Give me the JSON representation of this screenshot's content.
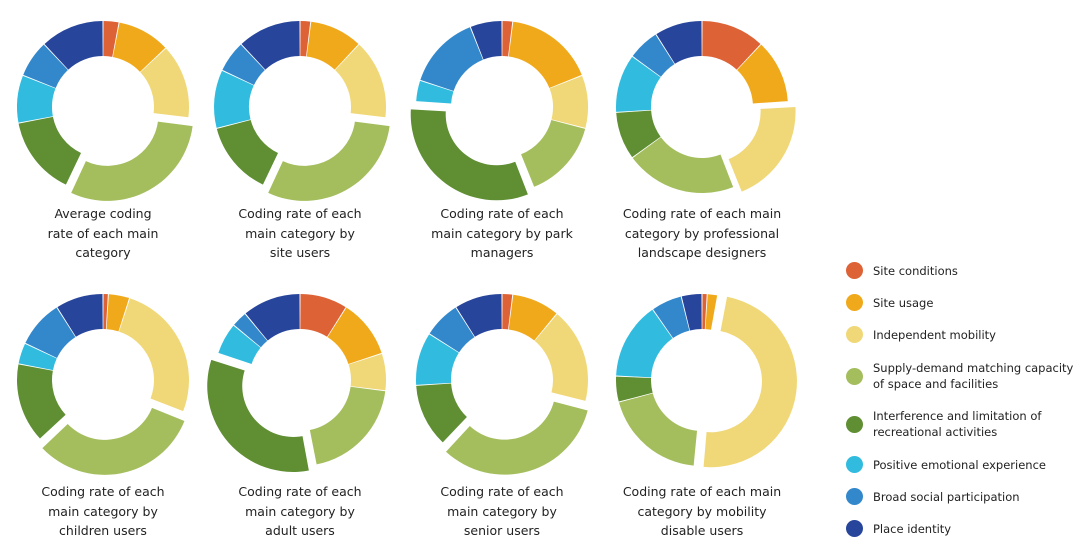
{
  "categories": [
    {
      "name": "Site conditions",
      "color": "#dd6236"
    },
    {
      "name": "Site usage",
      "color": "#f0a91b"
    },
    {
      "name": "Independent mobility",
      "color": "#f0d878"
    },
    {
      "name": "Supply-demand matching capacity of space and facilities",
      "color": "#a4be5e"
    },
    {
      "name": "Interference and limitation of recreational activities",
      "color": "#5f8e33"
    },
    {
      "name": "Positive emotional experience",
      "color": "#31bcdf"
    },
    {
      "name": "Broad social participation",
      "color": "#3388cc"
    },
    {
      "name": "Place identity",
      "color": "#27459b"
    }
  ],
  "chart_data": [
    {
      "type": "pie",
      "title": "Average coding rate of each main category",
      "exploded": 3,
      "values": [
        3,
        10,
        14,
        30,
        15,
        9,
        7,
        12
      ]
    },
    {
      "type": "pie",
      "title": "Coding rate of each main category by site users",
      "exploded": 3,
      "values": [
        2,
        10,
        15,
        30,
        14,
        11,
        6,
        12
      ]
    },
    {
      "type": "pie",
      "title": "Coding rate of each main category by park managers",
      "exploded": 4,
      "values": [
        2,
        17,
        10,
        15,
        32,
        4,
        14,
        6
      ]
    },
    {
      "type": "pie",
      "title": "Coding rate of each main category by professional landscape designers",
      "exploded": 2,
      "values": [
        12,
        12,
        20,
        21,
        9,
        11,
        6,
        9
      ]
    },
    {
      "type": "pie",
      "title": "Coding rate of each main category by children users",
      "exploded": 3,
      "values": [
        1,
        4,
        26,
        32,
        15,
        4,
        9,
        9
      ]
    },
    {
      "type": "pie",
      "title": "Coding rate of each main category by adult users",
      "exploded": 4,
      "values": [
        9,
        11,
        7,
        20,
        33,
        6,
        3,
        11
      ]
    },
    {
      "type": "pie",
      "title": "Coding rate of each main category by senior users",
      "exploded": 3,
      "values": [
        2,
        9,
        18,
        33,
        12,
        10,
        7,
        9
      ]
    },
    {
      "type": "pie",
      "title": "Coding rate of each main category by mobility disable users",
      "exploded": 2,
      "values": [
        1,
        2,
        50,
        20,
        5,
        15,
        6,
        4
      ]
    }
  ],
  "captions": [
    "Average coding\nrate of each main\ncategory",
    "Coding rate of each\nmain category by\nsite users",
    "Coding rate of each\nmain category by park\nmanagers",
    "Coding rate of each main\ncategory by professional\nlandscape designers",
    "Coding rate of each\nmain category by\nchildren users",
    "Coding rate of each\nmain category by\nadult users",
    "Coding rate of each\nmain category by\nsenior users",
    "Coding rate of each main\ncategory by mobility\ndisable users"
  ],
  "legend": [
    "Site conditions",
    "Site usage",
    "Independent mobility",
    "Supply-demand matching capacity\nof space and facilities",
    "Interference and limitation of\nrecreational activities",
    "Positive emotional experience",
    "Broad social participation",
    "Place identity"
  ]
}
